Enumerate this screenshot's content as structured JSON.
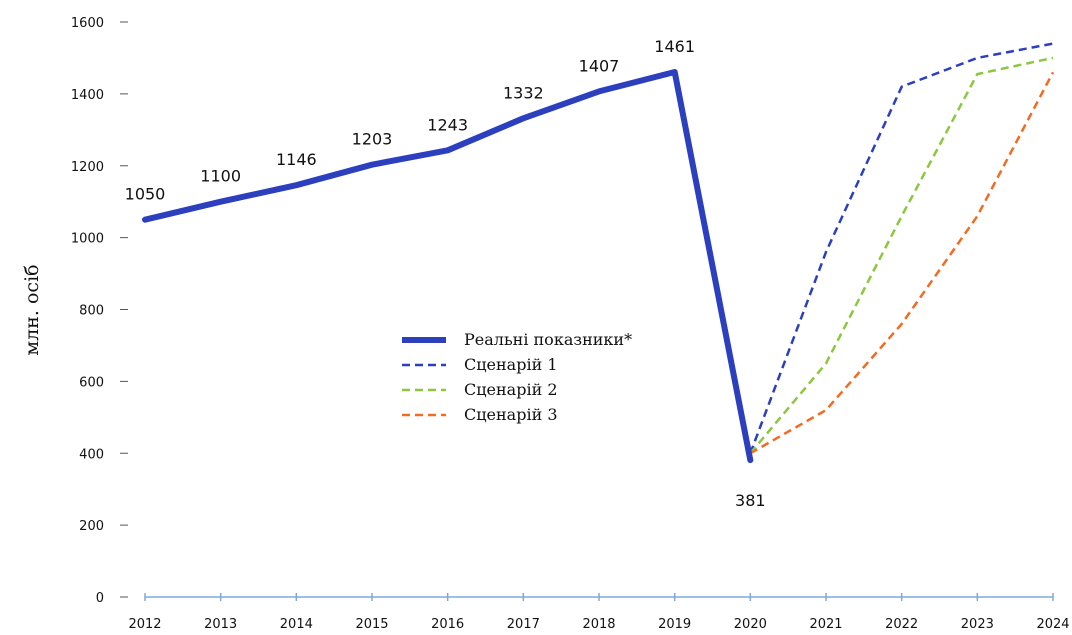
{
  "chart_data": {
    "type": "line",
    "title": "",
    "xlabel": "",
    "ylabel": "млн. осіб",
    "ylim": [
      0,
      1600
    ],
    "yticks": [
      0,
      200,
      400,
      600,
      800,
      1000,
      1200,
      1400,
      1600
    ],
    "categories": [
      "2012",
      "2013",
      "2014",
      "2015",
      "2016",
      "2017",
      "2018",
      "2019",
      "2020",
      "2021",
      "2022",
      "2023",
      "2024"
    ],
    "grid": false,
    "legend_position": "center",
    "series": [
      {
        "name": "Реальні показники*",
        "style": "solid",
        "color": "#2b3fbf",
        "x": [
          "2012",
          "2013",
          "2014",
          "2015",
          "2016",
          "2017",
          "2018",
          "2019",
          "2020"
        ],
        "values": [
          1050,
          1100,
          1146,
          1203,
          1243,
          1332,
          1407,
          1461,
          381
        ],
        "labels": [
          "1050",
          "1100",
          "1146",
          "1203",
          "1243",
          "1332",
          "1407",
          "1461",
          "381"
        ]
      },
      {
        "name": "Сценарій 1",
        "style": "dashed",
        "color": "#2b3fbf",
        "x": [
          "2020",
          "2021",
          "2022",
          "2023",
          "2024"
        ],
        "values": [
          400,
          960,
          1420,
          1500,
          1540
        ]
      },
      {
        "name": "Сценарій 2",
        "style": "dashed",
        "color": "#8dc63f",
        "x": [
          "2020",
          "2021",
          "2022",
          "2023",
          "2024"
        ],
        "values": [
          400,
          650,
          1060,
          1455,
          1500
        ]
      },
      {
        "name": "Сценарій 3",
        "style": "dashed",
        "color": "#f26b21",
        "x": [
          "2020",
          "2021",
          "2022",
          "2023",
          "2024"
        ],
        "values": [
          400,
          520,
          760,
          1060,
          1460
        ]
      }
    ]
  }
}
